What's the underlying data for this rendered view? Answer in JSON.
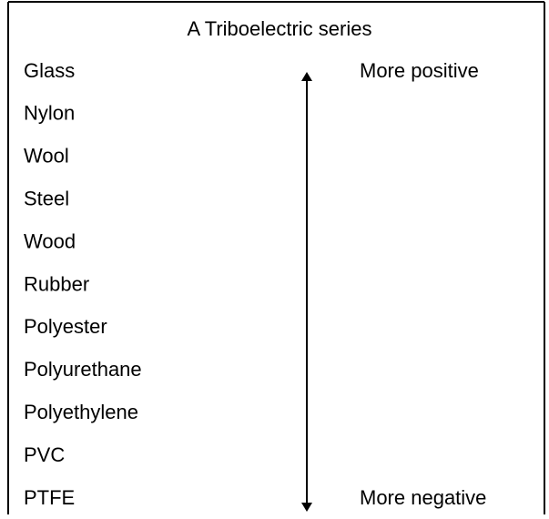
{
  "title": "A Triboelectric series",
  "items": [
    "Glass",
    "Nylon",
    "Wool",
    "Steel",
    "Wood",
    "Rubber",
    "Polyester",
    "Polyurethane",
    "Polyethylene",
    "PVC",
    "PTFE"
  ],
  "labels": {
    "top": "More positive",
    "bottom": "More negative"
  }
}
